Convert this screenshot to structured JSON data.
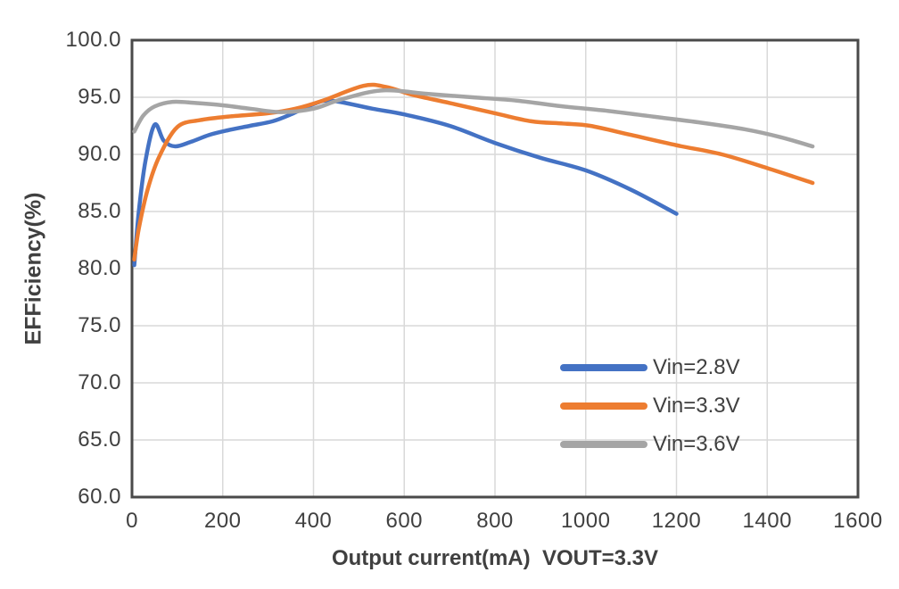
{
  "chart_data": {
    "type": "line",
    "title": "",
    "xlabel": "Output current(mA)  VOUT=3.3V",
    "ylabel": "EFFiciency(%)",
    "xlim": [
      0,
      1600
    ],
    "ylim": [
      60,
      100
    ],
    "x_ticks": [
      0,
      200,
      400,
      600,
      800,
      1000,
      1200,
      1400,
      1600
    ],
    "y_ticks": [
      60,
      65,
      70,
      75,
      80,
      85,
      90,
      95,
      100
    ],
    "y_tick_decimals": 1,
    "grid": true,
    "legend_position": "inside-right",
    "colors": {
      "axis_border": "#4a4a4a",
      "gridline": "#d9d9d9",
      "text": "#404040"
    },
    "series": [
      {
        "name": "Vin=2.8V",
        "color": "#4472C4",
        "points": [
          [
            5,
            80.3
          ],
          [
            15,
            85.0
          ],
          [
            30,
            89.5
          ],
          [
            50,
            92.6
          ],
          [
            70,
            91.2
          ],
          [
            95,
            90.7
          ],
          [
            130,
            91.1
          ],
          [
            170,
            91.7
          ],
          [
            210,
            92.1
          ],
          [
            260,
            92.5
          ],
          [
            310,
            92.9
          ],
          [
            350,
            93.5
          ],
          [
            400,
            94.4
          ],
          [
            440,
            94.7
          ],
          [
            530,
            94.0
          ],
          [
            600,
            93.5
          ],
          [
            700,
            92.5
          ],
          [
            800,
            91.0
          ],
          [
            900,
            89.7
          ],
          [
            1000,
            88.6
          ],
          [
            1100,
            86.9
          ],
          [
            1200,
            84.8
          ]
        ]
      },
      {
        "name": "Vin=3.3V",
        "color": "#ED7D31",
        "points": [
          [
            5,
            80.8
          ],
          [
            15,
            83.5
          ],
          [
            35,
            87.0
          ],
          [
            60,
            89.8
          ],
          [
            100,
            92.4
          ],
          [
            150,
            93.0
          ],
          [
            210,
            93.3
          ],
          [
            300,
            93.6
          ],
          [
            360,
            94.0
          ],
          [
            420,
            94.7
          ],
          [
            510,
            96.0
          ],
          [
            560,
            95.9
          ],
          [
            620,
            95.2
          ],
          [
            700,
            94.5
          ],
          [
            800,
            93.6
          ],
          [
            880,
            92.9
          ],
          [
            950,
            92.7
          ],
          [
            1010,
            92.5
          ],
          [
            1100,
            91.7
          ],
          [
            1200,
            90.8
          ],
          [
            1300,
            90.0
          ],
          [
            1400,
            88.8
          ],
          [
            1500,
            87.5
          ]
        ]
      },
      {
        "name": "Vin=3.6V",
        "color": "#A5A5A5",
        "points": [
          [
            5,
            92.0
          ],
          [
            25,
            93.4
          ],
          [
            50,
            94.2
          ],
          [
            90,
            94.6
          ],
          [
            140,
            94.5
          ],
          [
            200,
            94.3
          ],
          [
            260,
            94.0
          ],
          [
            330,
            93.7
          ],
          [
            400,
            94.0
          ],
          [
            460,
            94.8
          ],
          [
            550,
            95.6
          ],
          [
            650,
            95.3
          ],
          [
            750,
            95.0
          ],
          [
            850,
            94.7
          ],
          [
            950,
            94.2
          ],
          [
            1050,
            93.8
          ],
          [
            1150,
            93.3
          ],
          [
            1250,
            92.8
          ],
          [
            1350,
            92.2
          ],
          [
            1430,
            91.5
          ],
          [
            1500,
            90.7
          ]
        ]
      }
    ]
  }
}
